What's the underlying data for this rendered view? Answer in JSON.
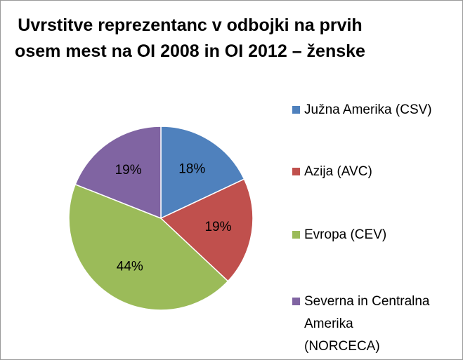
{
  "chart_data": {
    "type": "pie",
    "title": "Uvrstitve reprezentanc v odbojki na prvih osem mest na OI 2008 in OI 2012 – ženske",
    "categories": [
      "Južna Amerika (CSV)",
      "Azija (AVC)",
      "Evropa (CEV)",
      "Severna in Centralna Amerika (NORCECA)"
    ],
    "values": [
      18,
      19,
      44,
      19
    ],
    "value_labels": [
      "18%",
      "19%",
      "44%",
      "19%"
    ],
    "colors": [
      "#4f81bd",
      "#c0504d",
      "#9bbb59",
      "#8064a2"
    ],
    "legend": "right"
  }
}
